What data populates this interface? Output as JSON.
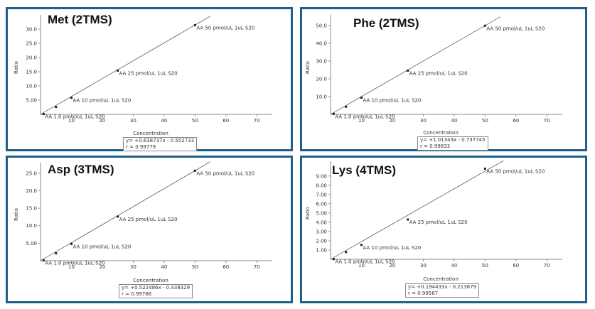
{
  "chart_data": [
    {
      "type": "scatter",
      "title": "Met (2TMS)",
      "xlabel": "Concentration",
      "ylabel": "Ratio",
      "xlim": [
        0,
        75
      ],
      "ylim": [
        0,
        35
      ],
      "xticks": [
        "10",
        "20",
        "30",
        "40",
        "50",
        "60",
        "70"
      ],
      "yticks": [
        "5.00",
        "10.0",
        "15.0",
        "20.0",
        "25.0",
        "30.0"
      ],
      "ytick_values": [
        5,
        10,
        15,
        20,
        25,
        30
      ],
      "fit": {
        "slope": 0.638737,
        "intercept": -0.552733,
        "x_range": [
          0,
          55
        ]
      },
      "equation": "y= +0.638737x - 0.552733",
      "r_text": "r = 0.99779",
      "points": [
        {
          "x": 1,
          "y": 0.09,
          "label": "AA 1.0 pmol/uL 1uL S20"
        },
        {
          "x": 5,
          "y": 2.6
        },
        {
          "x": 10,
          "y": 5.83,
          "label": "AA 10 pmol/uL 1uL S20"
        },
        {
          "x": 25,
          "y": 15.4,
          "label": "AA 25 pmol/uL 1uL S20"
        },
        {
          "x": 50,
          "y": 31.4,
          "label": "AA 50 pmol/uL 1uL S20"
        }
      ]
    },
    {
      "type": "scatter",
      "title": "Phe (2TMS)",
      "xlabel": "Concentration",
      "ylabel": "Ratio",
      "xlim": [
        0,
        75
      ],
      "ylim": [
        0,
        56
      ],
      "xticks": [
        "10",
        "20",
        "30",
        "40",
        "50",
        "60",
        "70"
      ],
      "yticks": [
        "10.0",
        "20.0",
        "30.0",
        "40.0",
        "50.0"
      ],
      "ytick_values": [
        10,
        20,
        30,
        40,
        50
      ],
      "fit": {
        "slope": 1.01343,
        "intercept": -0.737745,
        "x_range": [
          0,
          55
        ]
      },
      "equation": "y= +1.01343x - 0.737745",
      "r_text": "r = 0.99833",
      "points": [
        {
          "x": 1,
          "y": 0.28,
          "label": "AA 1.0 pmol/uL 1uL S20"
        },
        {
          "x": 5,
          "y": 4.3
        },
        {
          "x": 10,
          "y": 9.4,
          "label": "AA 10 pmol/uL 1uL S20"
        },
        {
          "x": 25,
          "y": 24.6,
          "label": "AA 25 pmol/uL 1uL S20"
        },
        {
          "x": 50,
          "y": 49.9,
          "label": "AA 50 pmol/uL 1uL S20"
        }
      ]
    },
    {
      "type": "scatter",
      "title": "Asp (3TMS)",
      "xlabel": "Concentration",
      "ylabel": "Ratio",
      "xlim": [
        0,
        75
      ],
      "ylim": [
        0,
        28
      ],
      "xticks": [
        "10",
        "20",
        "30",
        "40",
        "50",
        "60",
        "70"
      ],
      "yticks": [
        "5.00",
        "10.0",
        "15.0",
        "20.0",
        "25.0"
      ],
      "ytick_values": [
        5,
        10,
        15,
        20,
        25
      ],
      "fit": {
        "slope": 0.522486,
        "intercept": -0.438329,
        "x_range": [
          0,
          55
        ]
      },
      "equation": "y= +0.522486x - 0.438329",
      "r_text": "r = 0.99766",
      "points": [
        {
          "x": 1,
          "y": 0.08,
          "label": "AA 1.0 pmol/uL 1uL S20"
        },
        {
          "x": 5,
          "y": 2.1
        },
        {
          "x": 10,
          "y": 4.8,
          "label": "AA 10 pmol/uL 1uL S20"
        },
        {
          "x": 25,
          "y": 12.6,
          "label": "AA 25 pmol/uL 1uL S20"
        },
        {
          "x": 50,
          "y": 25.7,
          "label": "AA 50 pmol/uL 1uL S20"
        }
      ]
    },
    {
      "type": "scatter",
      "title": "Lys (4TMS)",
      "xlabel": "Concentration",
      "ylabel": "Ratio",
      "xlim": [
        0,
        75
      ],
      "ylim": [
        0,
        10.6
      ],
      "xticks": [
        "10",
        "20",
        "30",
        "40",
        "50",
        "60",
        "70"
      ],
      "yticks": [
        "1.00",
        "2.00",
        "3.00",
        "4.00",
        "5.00",
        "6.00",
        "7.00",
        "8.00",
        "9.00"
      ],
      "ytick_values": [
        1,
        2,
        3,
        4,
        5,
        6,
        7,
        8,
        9
      ],
      "fit": {
        "slope": 0.194433,
        "intercept": -0.213679,
        "x_range": [
          0,
          56
        ]
      },
      "equation": "y= +0.194433x - 0.213679",
      "r_text": "r = 0.99567",
      "points": [
        {
          "x": 1,
          "y": 0.02,
          "label": "AA 1.0 pmol/uL 1uL S20"
        },
        {
          "x": 5,
          "y": 0.78
        },
        {
          "x": 10,
          "y": 1.55,
          "label": "AA 10 pmol/uL 1uL S20"
        },
        {
          "x": 25,
          "y": 4.3,
          "label": "AA 25 pmol/uL 1uL S20"
        },
        {
          "x": 50,
          "y": 9.8,
          "label": "AA 50 pmol/uL 1uL S20"
        }
      ]
    }
  ]
}
